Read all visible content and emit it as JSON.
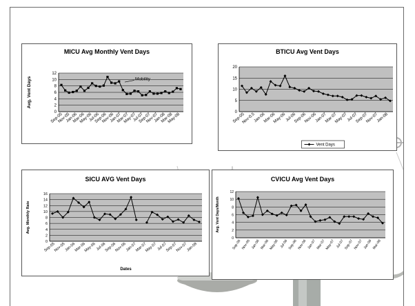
{
  "chart_data": [
    {
      "id": "micu",
      "type": "line",
      "title": "MICU Avg Monthly Vent Days",
      "ylabel": "Avg. Vent Days",
      "xlabel": "",
      "ylim": [
        0,
        12
      ],
      "yticks": [
        0,
        2,
        4,
        6,
        8,
        10,
        12
      ],
      "tick_labels": [
        "Sep-05",
        "Nov-05",
        "Jan-06",
        "Mar-06",
        "May-06",
        "Jul-06",
        "Sep-06",
        "Nov-06",
        "Jan-07",
        "Mar-07",
        "May-07",
        "Jul-07",
        "Sep-07",
        "Nov-07",
        "Jan-08",
        "Mar-08",
        "May-08"
      ],
      "grid": true,
      "marker": "square",
      "annotation": "Mobility",
      "series": [
        {
          "values": [
            8.3,
            6.6,
            5.9,
            6.1,
            6.5,
            7.8,
            6.5,
            7.4,
            8.8,
            8.0,
            7.8,
            8.1,
            10.8,
            9.0,
            8.8,
            9.4,
            6.7,
            5.5,
            5.6,
            6.5,
            6.3,
            5.1,
            5.2,
            6.3,
            5.6,
            5.6,
            5.8,
            6.3,
            5.8,
            6.2,
            7.3,
            7.0
          ]
        }
      ]
    },
    {
      "id": "bticu",
      "type": "line",
      "title": "BTICU Avg Vent Days",
      "ylabel": "",
      "xlabel": "",
      "ylim": [
        0,
        20
      ],
      "yticks": [
        0,
        5,
        10,
        15,
        20
      ],
      "tick_labels": [
        "Sep-05",
        "Nov-0.5",
        "Jan-06",
        "Mar-06",
        "May-06",
        "Jul-06",
        "Sep-06",
        "Nov-06",
        "Jan-07",
        "Mar-07",
        "May-07",
        "Jul-07",
        "Sep-07",
        "Nov-07",
        "Jan-08"
      ],
      "grid": true,
      "marker": "diamond",
      "legend": "top-right",
      "series": [
        {
          "name": "Vent Days",
          "values": [
            11.5,
            8.5,
            10.5,
            9.0,
            10.8,
            7.7,
            13.5,
            11.8,
            11.5,
            16.0,
            11.0,
            10.5,
            9.5,
            9.0,
            10.5,
            9.2,
            9.0,
            8.0,
            7.5,
            7.0,
            7.0,
            6.5,
            5.3,
            5.5,
            7.2,
            7.2,
            6.5,
            6.0,
            7.0,
            5.5,
            6.2,
            4.8
          ]
        }
      ]
    },
    {
      "id": "sicu",
      "type": "line",
      "title": "SICU  AVG Vent Days",
      "ylabel": "Avg. Monthly Rate",
      "xlabel": "Dates",
      "ylim": [
        0,
        16
      ],
      "yticks": [
        0,
        2,
        4,
        6,
        8,
        10,
        12,
        14,
        16
      ],
      "tick_labels": [
        "Sep-05",
        "Nov-05",
        "Jan-06",
        "Mar-06",
        "May-06",
        "Jul-06",
        "Sep-06",
        "Nov-06",
        "Jan-07",
        "Mar-07",
        "May-07",
        "Jul-07",
        "Sep-07",
        "Nov-07",
        "Jan-08"
      ],
      "grid": true,
      "marker": "diamond",
      "series": [
        {
          "values": [
            9.3,
            10.0,
            8.0,
            9.8,
            14.5,
            13.0,
            11.5,
            13.2,
            8.0,
            7.2,
            9.2,
            9.0,
            7.5,
            9.0,
            10.8,
            14.8,
            7.2,
            null,
            6.3,
            9.8,
            8.9,
            7.4,
            8.2,
            6.6,
            7.3,
            6.3,
            8.6,
            7.2,
            6.5
          ]
        }
      ]
    },
    {
      "id": "cvicu",
      "type": "line",
      "title": "CVICU Avg Vent Days",
      "ylabel": "Avg. Vent Days/Month",
      "xlabel": "",
      "ylim": [
        0,
        12
      ],
      "yticks": [
        0,
        2,
        4,
        6,
        8,
        10,
        12
      ],
      "tick_labels": [
        "Sep-05",
        "Nov-05",
        "Jan-06",
        "Mar-06",
        "May-06",
        "Jul-06",
        "Sep-06",
        "Nov-06",
        "Jan-07",
        "Mar-07",
        "May-07",
        "Jul-07",
        "Sep-07",
        "Nov-07",
        "Jan-08",
        "Mar-08"
      ],
      "grid": true,
      "marker": "diamond",
      "series": [
        {
          "values": [
            10.2,
            6.5,
            5.4,
            5.7,
            10.5,
            6.0,
            7.0,
            6.2,
            5.8,
            6.5,
            5.9,
            8.3,
            8.5,
            7.0,
            8.6,
            5.5,
            4.2,
            4.5,
            4.7,
            5.3,
            4.2,
            3.7,
            5.5,
            5.5,
            5.5,
            5.0,
            4.8,
            6.3,
            5.5,
            5.2,
            3.8
          ]
        }
      ]
    }
  ]
}
